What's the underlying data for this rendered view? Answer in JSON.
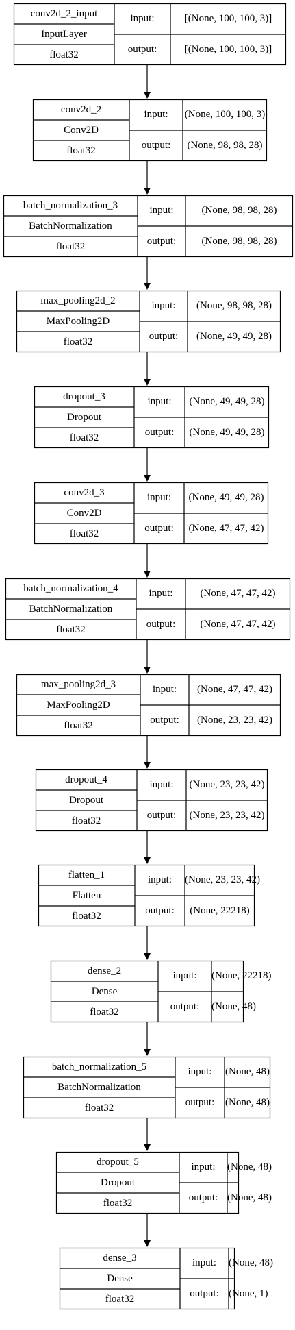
{
  "labels": {
    "input": "input:",
    "output": "output:"
  },
  "nodes": [
    {
      "name": "conv2d_2_input",
      "type": "InputLayer",
      "dtype": "float32",
      "input": "[(None, 100, 100, 3)]",
      "output": "[(None, 100, 100, 3)]"
    },
    {
      "name": "conv2d_2",
      "type": "Conv2D",
      "dtype": "float32",
      "input": "(None, 100, 100, 3)",
      "output": "(None, 98, 98, 28)"
    },
    {
      "name": "batch_normalization_3",
      "type": "BatchNormalization",
      "dtype": "float32",
      "input": "(None, 98, 98, 28)",
      "output": "(None, 98, 98, 28)"
    },
    {
      "name": "max_pooling2d_2",
      "type": "MaxPooling2D",
      "dtype": "float32",
      "input": "(None, 98, 98, 28)",
      "output": "(None, 49, 49, 28)"
    },
    {
      "name": "dropout_3",
      "type": "Dropout",
      "dtype": "float32",
      "input": "(None, 49, 49, 28)",
      "output": "(None, 49, 49, 28)"
    },
    {
      "name": "conv2d_3",
      "type": "Conv2D",
      "dtype": "float32",
      "input": "(None, 49, 49, 28)",
      "output": "(None, 47, 47, 42)"
    },
    {
      "name": "batch_normalization_4",
      "type": "BatchNormalization",
      "dtype": "float32",
      "input": "(None, 47, 47, 42)",
      "output": "(None, 47, 47, 42)"
    },
    {
      "name": "max_pooling2d_3",
      "type": "MaxPooling2D",
      "dtype": "float32",
      "input": "(None, 47, 47, 42)",
      "output": "(None, 23, 23, 42)"
    },
    {
      "name": "dropout_4",
      "type": "Dropout",
      "dtype": "float32",
      "input": "(None, 23, 23, 42)",
      "output": "(None, 23, 23, 42)"
    },
    {
      "name": "flatten_1",
      "type": "Flatten",
      "dtype": "float32",
      "input": "(None, 23, 23, 42)",
      "output": "(None, 22218)"
    },
    {
      "name": "dense_2",
      "type": "Dense",
      "dtype": "float32",
      "input": "(None, 22218)",
      "output": "(None, 48)"
    },
    {
      "name": "batch_normalization_5",
      "type": "BatchNormalization",
      "dtype": "float32",
      "input": "(None, 48)",
      "output": "(None, 48)"
    },
    {
      "name": "dropout_5",
      "type": "Dropout",
      "dtype": "float32",
      "input": "(None, 48)",
      "output": "(None, 48)"
    },
    {
      "name": "dense_3",
      "type": "Dense",
      "dtype": "float32",
      "input": "(None, 48)",
      "output": "(None, 1)"
    }
  ]
}
